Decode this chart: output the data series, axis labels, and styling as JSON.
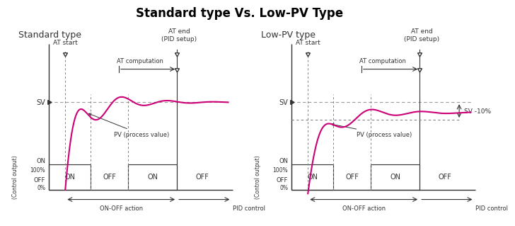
{
  "title": "Standard type Vs. Low-PV Type",
  "title_fontsize": 12,
  "title_fontweight": "bold",
  "bg_color": "#ffffff",
  "curve_color": "#cc0077",
  "sv_color": "#999999",
  "line_color": "#333333",
  "box_color": "#333333",
  "left_label": "Standard type",
  "right_label": "Low-PV type",
  "ylabel": "(Control output)",
  "sv_label": "SV",
  "on_label": "ON",
  "off_label": "OFF",
  "pv_label": "PV (process value)",
  "at_start_label": "AT start",
  "at_computation_label": "AT computation",
  "at_end_label": "AT end\n(PID setup)",
  "on_off_label": "ON-OFF action",
  "pid_label": "PID control",
  "sv_10_label": "SV -10%",
  "100pct": "100%",
  "0pct": "0%"
}
